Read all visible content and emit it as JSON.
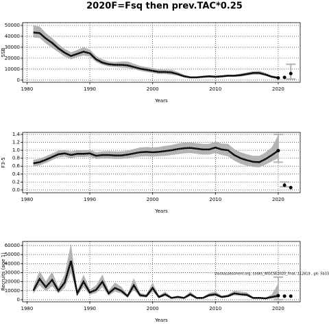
{
  "title": "2020F=Fsq then prev.TAC*0.25",
  "chart_data": [
    {
      "type": "line",
      "ylabel": "SSB",
      "xlabel": "Years",
      "x": [
        1981,
        1982,
        1983,
        1984,
        1985,
        1986,
        1987,
        1988,
        1989,
        1990,
        1991,
        1992,
        1993,
        1994,
        1995,
        1996,
        1997,
        1998,
        1999,
        2000,
        2001,
        2002,
        2003,
        2004,
        2005,
        2006,
        2007,
        2008,
        2009,
        2010,
        2011,
        2012,
        2013,
        2014,
        2015,
        2016,
        2017,
        2018,
        2019,
        2020
      ],
      "values": [
        43500,
        43000,
        38000,
        34000,
        29000,
        25000,
        22000,
        24000,
        26000,
        24500,
        19000,
        16000,
        14500,
        14000,
        14000,
        13500,
        12000,
        10500,
        9500,
        8500,
        7500,
        7500,
        7000,
        5500,
        3500,
        2500,
        2500,
        3000,
        3500,
        3000,
        3500,
        4000,
        4000,
        4500,
        5500,
        6500,
        6500,
        5000,
        3000,
        2000
      ],
      "low": [
        39000,
        38500,
        33500,
        29500,
        25500,
        21500,
        19000,
        21000,
        22500,
        21500,
        16500,
        14000,
        12500,
        12000,
        11500,
        11000,
        10000,
        8500,
        7500,
        6500,
        5500,
        5500,
        5000,
        4000,
        2500,
        1800,
        1800,
        2200,
        2500,
        2200,
        2500,
        3000,
        3000,
        3300,
        4200,
        5000,
        5000,
        3800,
        2200,
        1200
      ],
      "high": [
        50000,
        49000,
        43000,
        38500,
        33000,
        28500,
        25500,
        27500,
        30000,
        28000,
        22000,
        19000,
        17000,
        16500,
        17000,
        17000,
        15000,
        13000,
        12000,
        11000,
        10000,
        9500,
        9500,
        7500,
        5000,
        3500,
        3500,
        4000,
        4500,
        4000,
        4500,
        5000,
        5000,
        6000,
        7000,
        8000,
        8500,
        6500,
        4200,
        3500
      ],
      "projection": {
        "x": [
          2020,
          2021,
          2022
        ],
        "values": [
          2000,
          2500,
          6000
        ]
      },
      "error_bars": [
        {
          "x": 2022,
          "low": 1000,
          "high": 14500
        }
      ],
      "color": "#000000",
      "band_color": "#b3b3b3",
      "grid": true,
      "xlim": [
        1979.3,
        2023.5
      ],
      "xticks": [
        1980,
        1990,
        2000,
        2010,
        2020
      ],
      "ylim": [
        -2000,
        52500
      ],
      "yticks": [
        0,
        10000,
        20000,
        30000,
        40000,
        50000
      ]
    },
    {
      "type": "line",
      "ylabel": "F3-5",
      "xlabel": "Years",
      "x": [
        1981,
        1982,
        1983,
        1984,
        1985,
        1986,
        1987,
        1988,
        1989,
        1990,
        1991,
        1992,
        1993,
        1994,
        1995,
        1996,
        1997,
        1998,
        1999,
        2000,
        2001,
        2002,
        2003,
        2004,
        2005,
        2006,
        2007,
        2008,
        2009,
        2010,
        2011,
        2012,
        2013,
        2014,
        2015,
        2016,
        2017,
        2018,
        2019,
        2020
      ],
      "values": [
        0.67,
        0.7,
        0.76,
        0.83,
        0.9,
        0.92,
        0.88,
        0.91,
        0.91,
        0.92,
        0.86,
        0.88,
        0.88,
        0.87,
        0.87,
        0.89,
        0.92,
        0.95,
        0.96,
        0.95,
        0.96,
        0.98,
        1.0,
        1.03,
        1.05,
        1.06,
        1.04,
        1.02,
        1.02,
        1.07,
        1.02,
        1.0,
        0.88,
        0.8,
        0.75,
        0.71,
        0.7,
        0.78,
        0.88,
        0.99
      ],
      "low": [
        0.59,
        0.62,
        0.68,
        0.75,
        0.82,
        0.84,
        0.8,
        0.83,
        0.83,
        0.84,
        0.78,
        0.79,
        0.79,
        0.78,
        0.78,
        0.8,
        0.82,
        0.84,
        0.85,
        0.84,
        0.85,
        0.86,
        0.88,
        0.9,
        0.92,
        0.93,
        0.91,
        0.89,
        0.89,
        0.93,
        0.88,
        0.85,
        0.74,
        0.66,
        0.61,
        0.58,
        0.57,
        0.64,
        0.72,
        0.8
      ],
      "high": [
        0.76,
        0.79,
        0.85,
        0.92,
        0.99,
        1.01,
        0.97,
        1.0,
        1.0,
        1.01,
        0.95,
        0.97,
        0.98,
        0.97,
        0.97,
        0.99,
        1.03,
        1.07,
        1.08,
        1.07,
        1.08,
        1.11,
        1.13,
        1.17,
        1.19,
        1.2,
        1.18,
        1.16,
        1.16,
        1.22,
        1.17,
        1.16,
        1.03,
        0.95,
        0.9,
        0.86,
        0.86,
        0.95,
        1.08,
        1.38
      ],
      "projection": {
        "x": [
          2020,
          2021,
          2022
        ],
        "values": [
          0.99,
          0.12,
          0.06
        ]
      },
      "error_bars": [
        {
          "x": 2020,
          "low": 0.7,
          "high": 1.4
        },
        {
          "x": 2021,
          "low": 0.08,
          "high": 0.2
        }
      ],
      "color": "#000000",
      "band_color": "#b3b3b3",
      "grid": true,
      "xlim": [
        1979.3,
        2023.5
      ],
      "xticks": [
        1980,
        1990,
        2000,
        2010,
        2020
      ],
      "ylim": [
        -0.07,
        1.45
      ],
      "yticks": [
        {
          "value": 0,
          "label": "0.0"
        },
        0.2,
        0.4,
        0.6,
        0.8,
        {
          "value": 1,
          "label": "1.0"
        },
        1.2,
        1.4
      ]
    },
    {
      "type": "line",
      "ylabel": "Recruits (age 1)",
      "xlabel": "Years",
      "annotation": "stockassessment.org, codes_WGCSE2020_final, 112819 , git: 5b33",
      "x": [
        1981,
        1982,
        1983,
        1984,
        1985,
        1986,
        1987,
        1988,
        1989,
        1990,
        1991,
        1992,
        1993,
        1994,
        1995,
        1996,
        1997,
        1998,
        1999,
        2000,
        2001,
        2002,
        2003,
        2004,
        2005,
        2006,
        2007,
        2008,
        2009,
        2010,
        2011,
        2012,
        2013,
        2014,
        2015,
        2016,
        2017,
        2018,
        2019,
        2020
      ],
      "values": [
        10000,
        23000,
        14000,
        22000,
        10000,
        19000,
        43000,
        7000,
        20000,
        8000,
        11000,
        20000,
        7000,
        13000,
        10000,
        4000,
        16000,
        5000,
        4000,
        13000,
        3000,
        6000,
        2000,
        3000,
        2000,
        6000,
        2000,
        2000,
        5000,
        6000,
        3000,
        4000,
        7000,
        6000,
        5500,
        2000,
        2000,
        1500,
        3000,
        4500
      ],
      "low": [
        7000,
        16000,
        9500,
        15000,
        7000,
        13000,
        30000,
        4500,
        14000,
        5500,
        7500,
        14000,
        4500,
        9000,
        7000,
        2500,
        11000,
        3000,
        2500,
        9000,
        2000,
        4000,
        1200,
        2000,
        1200,
        4000,
        1200,
        1200,
        3500,
        4000,
        2000,
        2800,
        5000,
        4200,
        3800,
        1200,
        1200,
        800,
        1500,
        1000
      ],
      "high": [
        14000,
        32000,
        20000,
        31000,
        14000,
        28000,
        62000,
        10000,
        28000,
        11500,
        16000,
        28000,
        10500,
        19000,
        14500,
        6000,
        24000,
        7500,
        6000,
        19000,
        4500,
        9000,
        3000,
        4500,
        3000,
        9000,
        3000,
        3000,
        7500,
        9000,
        4500,
        6000,
        10000,
        9000,
        8000,
        3000,
        3000,
        2500,
        6000,
        18000
      ],
      "projection": {
        "x": [
          2020,
          2021,
          2022
        ],
        "values": [
          4500,
          4000,
          4000
        ]
      },
      "error_bars": [
        {
          "x": 2020,
          "low": 0,
          "high": 25000
        }
      ],
      "color": "#000000",
      "band_color": "#b3b3b3",
      "grid": true,
      "xlim": [
        1979.3,
        2023.5
      ],
      "xticks": [
        1980,
        1990,
        2000,
        2010,
        2020
      ],
      "ylim": [
        -2300,
        64500
      ],
      "yticks": [
        0,
        10000,
        20000,
        30000,
        40000,
        50000,
        60000
      ]
    }
  ]
}
